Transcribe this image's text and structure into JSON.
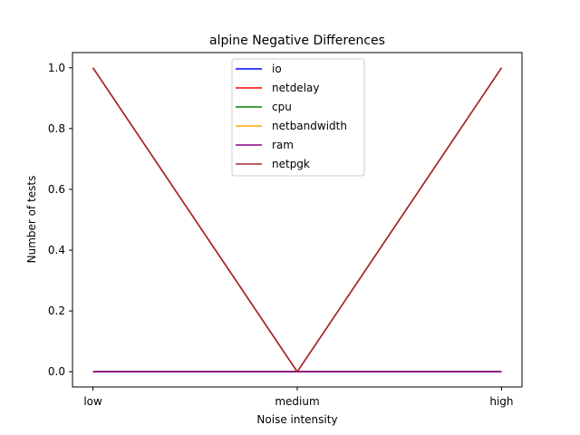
{
  "chart_data": {
    "type": "line",
    "title": "alpine Negative Differences",
    "xlabel": "Noise intensity",
    "ylabel": "Number of tests",
    "categories": [
      "low",
      "medium",
      "high"
    ],
    "ylim": [
      -0.05,
      1.05
    ],
    "yticks": [
      "0.0",
      "0.2",
      "0.4",
      "0.6",
      "0.8",
      "1.0"
    ],
    "grid": false,
    "legend_position": "top-center",
    "series": [
      {
        "name": "io",
        "color": "#0000ff",
        "values": [
          0,
          0,
          0
        ]
      },
      {
        "name": "netdelay",
        "color": "#ff0000",
        "values": [
          1,
          0,
          1
        ]
      },
      {
        "name": "cpu",
        "color": "#008000",
        "values": [
          0,
          0,
          0
        ]
      },
      {
        "name": "netbandwidth",
        "color": "#ffa500",
        "values": [
          0,
          0,
          0
        ]
      },
      {
        "name": "ram",
        "color": "#800080",
        "values": [
          0,
          0,
          0
        ]
      },
      {
        "name": "netpgk",
        "color": "#a52a2a",
        "values": [
          1,
          0,
          1
        ]
      }
    ]
  }
}
